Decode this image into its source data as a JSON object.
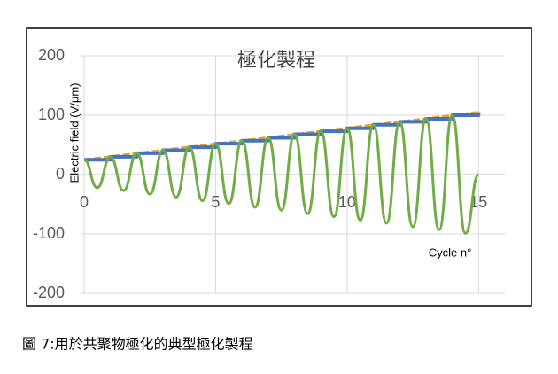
{
  "chart_data": {
    "type": "line",
    "title": "極化製程",
    "y_label": "Electric field (V/μm)",
    "x_label": "Cycle n°",
    "xlim": [
      0,
      16
    ],
    "ylim": [
      -200,
      200
    ],
    "xticks": [
      0,
      5,
      10,
      15
    ],
    "yticks": [
      -200,
      -100,
      0,
      100,
      200
    ],
    "grid": true,
    "series": [
      {
        "color": "#e5a52c",
        "style": "dashed",
        "x": [
          0,
          15
        ],
        "values": [
          25,
          105
        ]
      },
      {
        "color": "#4472c4",
        "style": "step",
        "x": [
          0,
          1,
          2,
          3,
          4,
          5,
          6,
          7,
          8,
          9,
          10,
          11,
          12,
          13,
          14,
          15
        ],
        "values": [
          25,
          30,
          36,
          41,
          46,
          52,
          57,
          62,
          68,
          73,
          78,
          84,
          89,
          94,
          100,
          105
        ]
      },
      {
        "color": "#70ad47",
        "style": "smooth",
        "x": [
          0,
          0.5,
          1,
          1.5,
          2,
          2.5,
          3,
          3.5,
          4,
          4.5,
          5,
          5.5,
          6,
          6.5,
          7,
          7.5,
          8,
          8.5,
          9,
          9.5,
          10,
          10.5,
          11,
          11.5,
          12,
          12.5,
          13,
          13.5,
          14,
          14.5,
          15
        ],
        "values": [
          25,
          -22,
          30,
          -27,
          36,
          -33,
          41,
          -38,
          46,
          -44,
          52,
          -49,
          57,
          -55,
          62,
          -60,
          68,
          -66,
          73,
          -71,
          78,
          -77,
          84,
          -82,
          89,
          -88,
          94,
          -93,
          100,
          -99,
          0
        ]
      }
    ]
  },
  "caption": "圖 7:用於共聚物極化的典型極化製程"
}
